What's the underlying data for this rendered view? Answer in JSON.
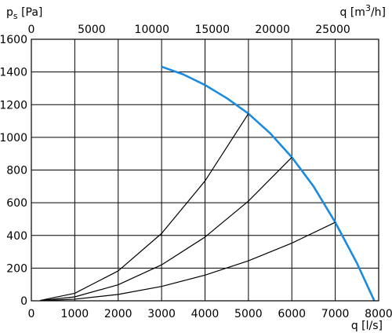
{
  "chart_data": {
    "type": "line",
    "y_axis": {
      "label_main": "p",
      "label_sub": "s",
      "label_unit": " [Pa]",
      "range": [
        0,
        1600
      ],
      "ticks": [
        "0",
        "200",
        "400",
        "600",
        "800",
        "1000",
        "1200",
        "1400",
        "1600"
      ]
    },
    "x_axis_bottom": {
      "label": "q [l/s]",
      "range": [
        0,
        8000
      ],
      "ticks": [
        "0",
        "1000",
        "2000",
        "3000",
        "4000",
        "5000",
        "6000",
        "7000",
        "8000"
      ]
    },
    "x_axis_top": {
      "label_main": "q [m",
      "label_sup": "3",
      "label_tail": "/h]",
      "range": [
        0,
        28800
      ],
      "ticks": [
        "0",
        "5000",
        "10000",
        "15000",
        "20000",
        "25000"
      ]
    },
    "grid": true,
    "series": [
      {
        "color": "#1a8be0",
        "x": [
          3000,
          3500,
          4000,
          4500,
          5000,
          5500,
          6000,
          6500,
          7000,
          7500,
          7900
        ],
        "y": [
          1432,
          1385,
          1320,
          1240,
          1145,
          1025,
          878,
          700,
          480,
          230,
          0
        ]
      },
      {
        "color": "#000000",
        "x": [
          200,
          1000,
          2000,
          3000,
          4000,
          5000
        ],
        "y": [
          2,
          46,
          183,
          412,
          733,
          1145
        ]
      },
      {
        "color": "#000000",
        "x": [
          200,
          1000,
          2000,
          3000,
          4000,
          5000,
          6000
        ],
        "y": [
          1,
          24,
          98,
          220,
          390,
          610,
          878
        ]
      },
      {
        "color": "#000000",
        "x": [
          200,
          1000,
          2000,
          3000,
          4000,
          5000,
          6000,
          7000
        ],
        "y": [
          0.4,
          10,
          39,
          88,
          157,
          245,
          353,
          480
        ]
      }
    ]
  }
}
